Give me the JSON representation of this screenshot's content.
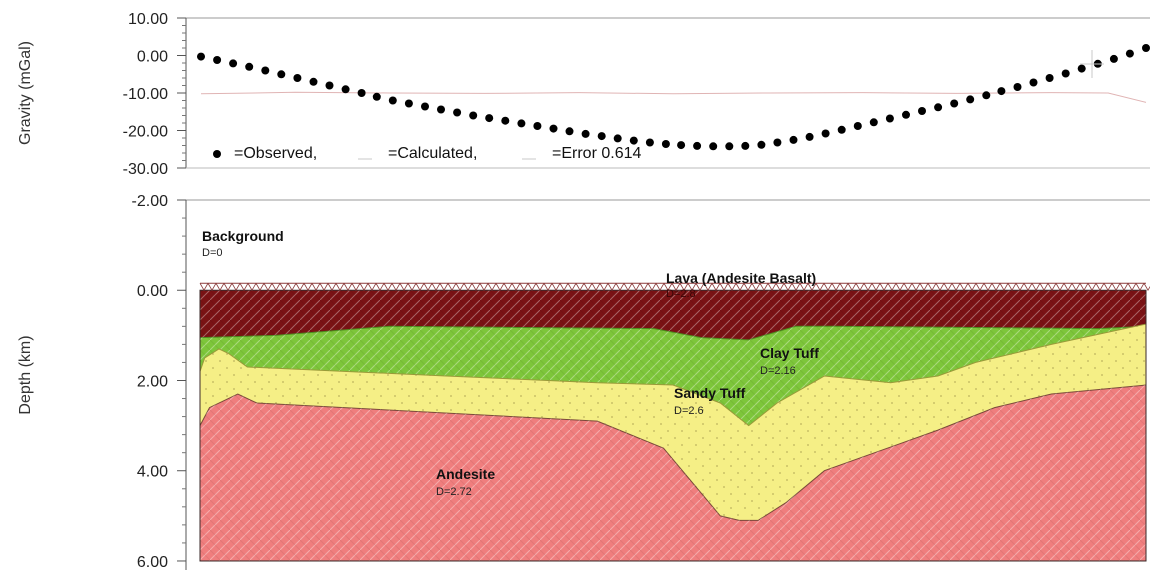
{
  "chart_data": [
    {
      "type": "scatter",
      "panel": "gravity",
      "ylabel": "Gravity (mGal)",
      "ylim": [
        -30,
        10
      ],
      "y_ticks": [
        "10.00",
        "0.00",
        "-10.00",
        "-20.00",
        "-30.00"
      ],
      "legend": {
        "observed": "=Observed,",
        "calculated": "=Calculated,",
        "error": "=Error 0.614"
      },
      "series": [
        {
          "name": "Observed",
          "x": [
            0,
            0.017,
            0.034,
            0.051,
            0.068,
            0.085,
            0.102,
            0.119,
            0.136,
            0.153,
            0.17,
            0.186,
            0.203,
            0.22,
            0.237,
            0.254,
            0.271,
            0.288,
            0.305,
            0.322,
            0.339,
            0.356,
            0.373,
            0.39,
            0.407,
            0.424,
            0.441,
            0.458,
            0.475,
            0.492,
            0.508,
            0.525,
            0.542,
            0.559,
            0.576,
            0.593,
            0.61,
            0.627,
            0.644,
            0.661,
            0.678,
            0.695,
            0.712,
            0.729,
            0.746,
            0.763,
            0.78,
            0.797,
            0.814,
            0.831,
            0.847,
            0.864,
            0.881,
            0.898,
            0.915,
            0.932,
            0.949,
            0.966,
            0.983,
            1.0
          ],
          "values": [
            -0.3,
            -1.2,
            -2.1,
            -3.0,
            -4.0,
            -5.0,
            -6.0,
            -7.0,
            -8.0,
            -9.0,
            -10.0,
            -11.0,
            -12.0,
            -12.8,
            -13.6,
            -14.4,
            -15.2,
            -16.0,
            -16.7,
            -17.4,
            -18.1,
            -18.8,
            -19.5,
            -20.2,
            -20.9,
            -21.5,
            -22.1,
            -22.7,
            -23.2,
            -23.6,
            -23.9,
            -24.1,
            -24.2,
            -24.2,
            -24.1,
            -23.8,
            -23.2,
            -22.5,
            -21.7,
            -20.8,
            -19.8,
            -18.8,
            -17.8,
            -16.8,
            -15.8,
            -14.8,
            -13.8,
            -12.8,
            -11.7,
            -10.6,
            -9.5,
            -8.4,
            -7.2,
            -6.0,
            -4.8,
            -3.5,
            -2.2,
            -0.9,
            0.5,
            2.0
          ]
        },
        {
          "name": "Calculated",
          "x": [
            0,
            0.1,
            0.2,
            0.3,
            0.4,
            0.5,
            0.6,
            0.7,
            0.8,
            0.9,
            0.96,
            1.0
          ],
          "values": [
            -10.2,
            -9.8,
            -10.0,
            -10.1,
            -9.9,
            -10.2,
            -10.0,
            -9.9,
            -10.1,
            -9.9,
            -10.0,
            -12.5
          ]
        }
      ]
    },
    {
      "type": "area",
      "panel": "depth-section",
      "ylabel": "Depth (km)",
      "ylim": [
        6.2,
        -2.0
      ],
      "y_ticks": [
        "-2.00",
        "0.00",
        "2.00",
        "4.00",
        "6.00"
      ],
      "series": [
        {
          "name": "Andesite",
          "density": "D=2.72",
          "color": "#f07e7e",
          "top_x": [
            0,
            0.01,
            0.04,
            0.06,
            0.42,
            0.49,
            0.55,
            0.57,
            0.59,
            0.62,
            0.66,
            0.74,
            0.78,
            0.84,
            0.9,
            1.0
          ],
          "top_depth": [
            3.0,
            2.6,
            2.3,
            2.5,
            2.9,
            3.5,
            5.0,
            5.1,
            5.1,
            4.7,
            4.0,
            3.4,
            3.1,
            2.6,
            2.3,
            2.1
          ],
          "bottom_depth": 6.0
        },
        {
          "name": "Sandy Tuff",
          "density": "D=2.6",
          "color": "#f5ef86",
          "top_x": [
            0,
            0.005,
            0.02,
            0.03,
            0.05,
            0.26,
            0.42,
            0.5,
            0.55,
            0.58,
            0.61,
            0.66,
            0.73,
            0.78,
            0.82,
            0.9,
            1.0
          ],
          "top_depth": [
            1.8,
            1.5,
            1.3,
            1.4,
            1.7,
            1.9,
            2.05,
            2.1,
            2.5,
            3.0,
            2.5,
            1.9,
            2.05,
            1.9,
            1.6,
            1.2,
            0.75
          ]
        },
        {
          "name": "Clay Tuff",
          "density": "D=2.16",
          "color": "#7dc63a",
          "top_x": [
            0,
            0.08,
            0.2,
            0.48,
            0.53,
            0.58,
            0.63,
            0.67,
            0.95,
            1.0
          ],
          "top_depth": [
            1.05,
            1.0,
            0.8,
            0.85,
            1.05,
            1.1,
            0.8,
            0.8,
            0.85,
            0.8
          ],
          "deep_min_depth": 3.8
        },
        {
          "name": "Lava (Andesite Basalt)",
          "density": "D=2.8",
          "color": "#7a1214",
          "top_depth": 0.0
        },
        {
          "name": "Background",
          "density": "D=0",
          "color": "#ffffff"
        }
      ]
    }
  ]
}
